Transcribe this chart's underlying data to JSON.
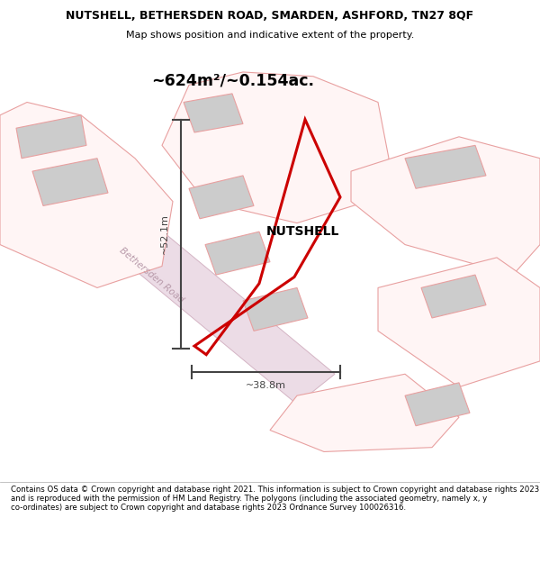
{
  "title": "NUTSHELL, BETHERSDEN ROAD, SMARDEN, ASHFORD, TN27 8QF",
  "subtitle": "Map shows position and indicative extent of the property.",
  "area_label": "~624m²/~0.154ac.",
  "property_label": "NUTSHELL",
  "dim_height": "~52.1m",
  "dim_width": "~38.8m",
  "road_label": "Bethersden Road",
  "footer": "Contains OS data © Crown copyright and database right 2021. This information is subject to Crown copyright and database rights 2023 and is reproduced with the permission of HM Land Registry. The polygons (including the associated geometry, namely x, y co-ordinates) are subject to Crown copyright and database rights 2023 Ordnance Survey 100026316.",
  "map_bg": "#ffffff",
  "property_fill": "#ffffff",
  "property_outline_color": "#cc0000",
  "other_outline_color": "#e8a0a0",
  "other_fill": "#fff5f5",
  "building_fill": "#cccccc",
  "building_edge": "#e8a0a0",
  "dim_color": "#444444",
  "road_fill": "#ecdce6",
  "road_edge": "#d4b4c4",
  "road_text": "#b89aaa"
}
